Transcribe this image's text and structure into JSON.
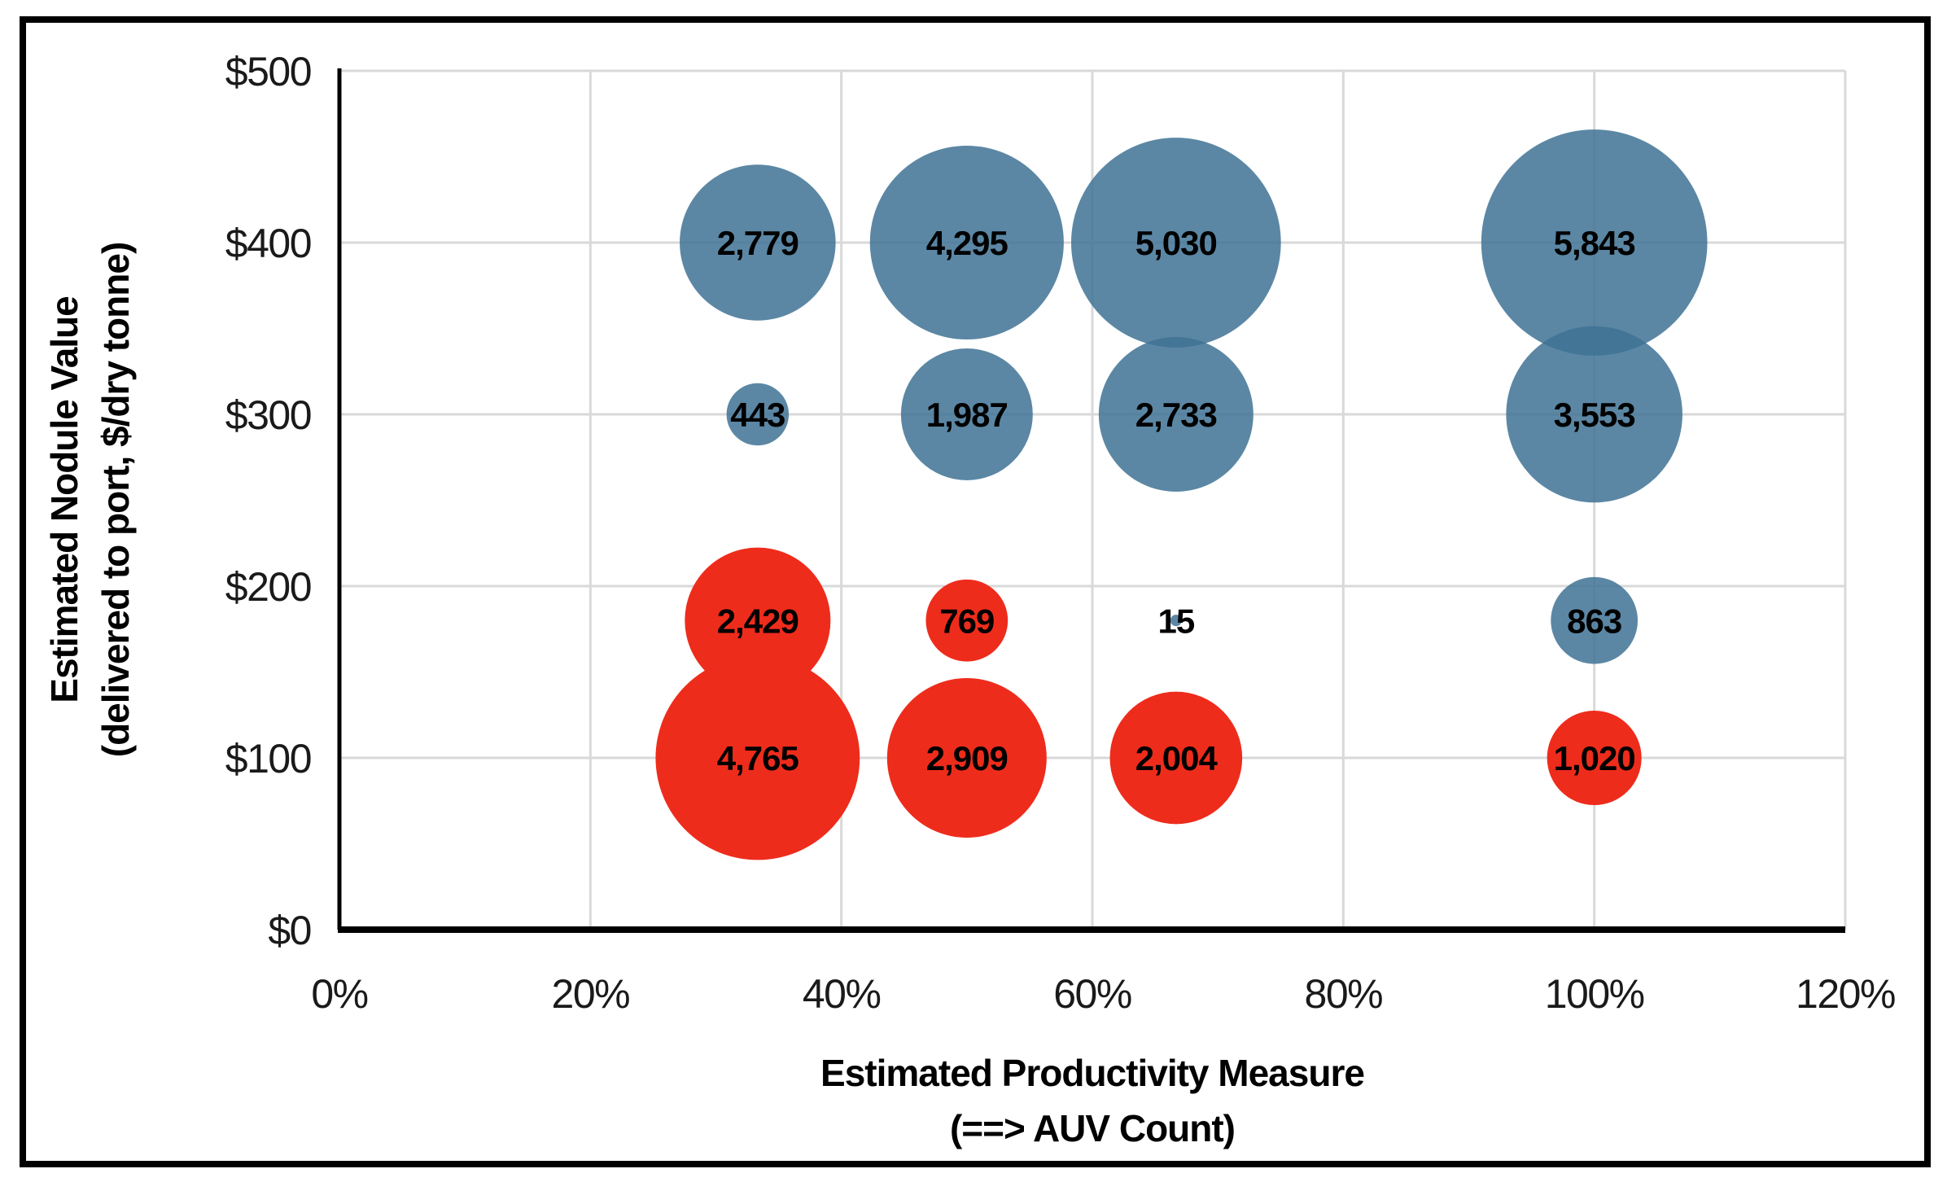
{
  "figure": {
    "background": "#FFFFFF",
    "border_color": "#000000",
    "gridline_color": "#D9D9D9",
    "axis_color": "#000000"
  },
  "chart_data": {
    "type": "bubble",
    "title": "",
    "xlabel_line1": "Estimated Productivity Measure",
    "xlabel_line2": "(==> AUV Count)",
    "ylabel_line1": "Estimated Nodule Value",
    "ylabel_line2": "(delivered to port, $/dry tonne)",
    "x_tick_labels": [
      "0%",
      "20%",
      "40%",
      "60%",
      "80%",
      "100%",
      "120%"
    ],
    "x_tick_values": [
      0,
      20,
      40,
      60,
      80,
      100,
      120
    ],
    "y_tick_labels": [
      "$0",
      "$100",
      "$200",
      "$300",
      "$400",
      "$500"
    ],
    "y_tick_values": [
      0,
      100,
      200,
      300,
      400,
      500
    ],
    "xlim": [
      0,
      120
    ],
    "ylim": [
      0,
      500
    ],
    "grid": true,
    "legend": false,
    "bubble_sizing": "area proportional to value",
    "series": [
      {
        "name": "blue-positive",
        "color": "#3E7294",
        "opacity": 0.85,
        "points": [
          {
            "x": 33.33,
            "y": 400,
            "value": 2779,
            "label": "2,779"
          },
          {
            "x": 50,
            "y": 400,
            "value": 4295,
            "label": "4,295"
          },
          {
            "x": 66.67,
            "y": 400,
            "value": 5030,
            "label": "5,030"
          },
          {
            "x": 100,
            "y": 400,
            "value": 5843,
            "label": "5,843"
          },
          {
            "x": 33.33,
            "y": 300,
            "value": 443,
            "label": "443"
          },
          {
            "x": 50,
            "y": 300,
            "value": 1987,
            "label": "1,987"
          },
          {
            "x": 66.67,
            "y": 300,
            "value": 2733,
            "label": "2,733"
          },
          {
            "x": 100,
            "y": 300,
            "value": 3553,
            "label": "3,553"
          },
          {
            "x": 66.67,
            "y": 180,
            "value": 15,
            "label": "15"
          },
          {
            "x": 100,
            "y": 180,
            "value": 863,
            "label": "863"
          }
        ]
      },
      {
        "name": "red-negative",
        "color": "#EE2C1C",
        "opacity": 1,
        "points": [
          {
            "x": 33.33,
            "y": 180,
            "value": 2429,
            "label": "2,429"
          },
          {
            "x": 50,
            "y": 180,
            "value": 769,
            "label": "769"
          },
          {
            "x": 33.33,
            "y": 100,
            "value": 4765,
            "label": "4,765"
          },
          {
            "x": 50,
            "y": 100,
            "value": 2909,
            "label": "2,909"
          },
          {
            "x": 66.67,
            "y": 100,
            "value": 2004,
            "label": "2,004"
          },
          {
            "x": 100,
            "y": 100,
            "value": 1020,
            "label": "1,020"
          }
        ]
      }
    ]
  }
}
